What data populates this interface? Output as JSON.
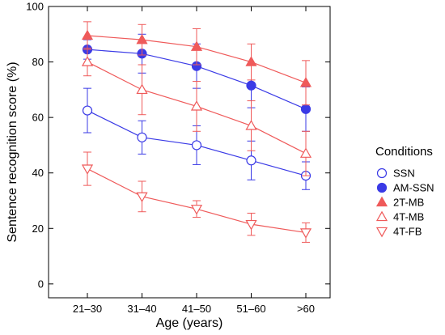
{
  "chart_data": {
    "type": "line",
    "categories": [
      "21–30",
      "31–40",
      "41–50",
      "51–60",
      ">60"
    ],
    "xlabel": "Age (years)",
    "ylabel": "Sentence recognition score (%)",
    "ylim": [
      -5,
      100
    ],
    "yticks": [
      0,
      20,
      40,
      60,
      80,
      100
    ],
    "grid": false,
    "legend": {
      "title": "Conditions",
      "placement": "right"
    },
    "series": [
      {
        "name": "SSN",
        "color": "#3a3ae6",
        "marker": "circle-open",
        "values": [
          62.5,
          52.8,
          50.0,
          44.5,
          39.0
        ],
        "errors": [
          8.0,
          6.0,
          7.0,
          7.0,
          5.0
        ]
      },
      {
        "name": "AM-SSN",
        "color": "#3a3ae6",
        "marker": "circle-filled",
        "values": [
          84.5,
          83.0,
          78.5,
          71.5,
          63.0
        ],
        "errors": [
          3.5,
          7.0,
          8.0,
          8.0,
          8.0
        ]
      },
      {
        "name": "2T-MB",
        "color": "#ef5a5a",
        "marker": "triangle-up-filled",
        "values": [
          89.5,
          88.0,
          85.5,
          80.0,
          72.5
        ],
        "errors": [
          5.0,
          5.5,
          6.5,
          6.5,
          8.0
        ]
      },
      {
        "name": "4T-MB",
        "color": "#ef5a5a",
        "marker": "triangle-up-open",
        "values": [
          80.0,
          70.0,
          64.0,
          57.0,
          47.0
        ],
        "errors": [
          5.0,
          9.0,
          9.0,
          9.0,
          8.0
        ]
      },
      {
        "name": "4T-FB",
        "color": "#ef5a5a",
        "marker": "triangle-down-open",
        "values": [
          41.5,
          31.5,
          27.0,
          21.5,
          18.5
        ],
        "errors": [
          6.0,
          5.5,
          3.0,
          4.0,
          3.5
        ]
      }
    ]
  }
}
